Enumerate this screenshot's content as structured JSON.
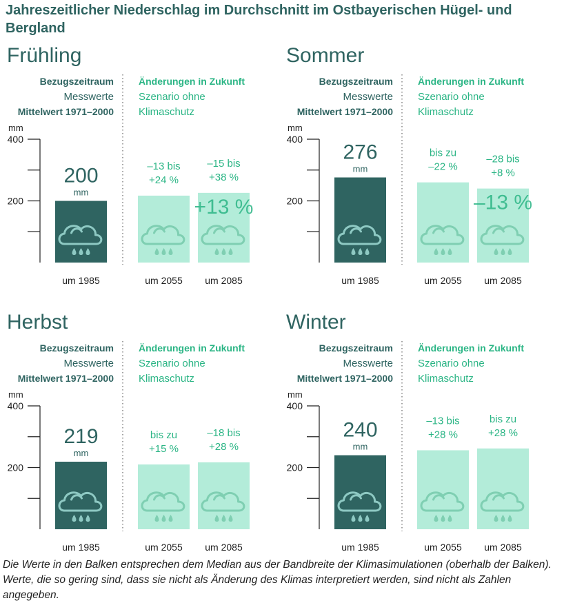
{
  "title": "Jahreszeitlicher Niederschlag im Durchschnitt im Ostbayerischen Hügel- und Bergland",
  "footnote": "Die Werte in den Balken entsprechen dem Median aus der Bandbreite der Klimasimulationen (oberhalb der Balken). Werte, die so gering sind, dass sie nicht als Änderung des Klimas interpretiert werden, sind nicht als Zahlen angegeben.",
  "colors": {
    "title": "#2f6461",
    "dark_bar": "#2f6461",
    "light_bar": "#b3ecd9",
    "accent_text": "#2bb585",
    "cloud_on_dark": "#8ec9c3",
    "cloud_on_light": "#7fcfb2",
    "axis": "#222222"
  },
  "chart_data": [
    {
      "type": "bar",
      "title": "Frühling",
      "unit": "mm",
      "ylabel": "mm",
      "yticks": [
        400,
        200
      ],
      "ylim": [
        0,
        400
      ],
      "reference_heading": [
        "Bezugszeitraum",
        "Messwerte",
        "Mittelwert 1971–2000"
      ],
      "future_heading": [
        "Änderungen in Zukunft",
        "Szenario ohne",
        "Klimaschutz"
      ],
      "categories": [
        "um 1985",
        "um 2055",
        "um 2085"
      ],
      "values": [
        200,
        217,
        226
      ],
      "value_label": "200",
      "value_unit": "mm",
      "range_labels": [
        "",
        "–13 bis\n+24 %",
        "–15 bis\n+38 %"
      ],
      "median_labels": [
        "",
        "",
        "+13 %"
      ]
    },
    {
      "type": "bar",
      "title": "Sommer",
      "unit": "mm",
      "ylabel": "mm",
      "yticks": [
        400,
        200
      ],
      "ylim": [
        0,
        400
      ],
      "reference_heading": [
        "Bezugszeitraum",
        "Messwerte",
        "Mittelwert 1971–2000"
      ],
      "future_heading": [
        "Änderungen in Zukunft",
        "Szenario ohne",
        "Klimaschutz"
      ],
      "categories": [
        "um 1985",
        "um 2055",
        "um 2085"
      ],
      "values": [
        276,
        260,
        240
      ],
      "value_label": "276",
      "value_unit": "mm",
      "range_labels": [
        "",
        "bis zu\n–22 %",
        "–28 bis\n+8 %"
      ],
      "median_labels": [
        "",
        "",
        "–13 %"
      ]
    },
    {
      "type": "bar",
      "title": "Herbst",
      "unit": "mm",
      "ylabel": "mm",
      "yticks": [
        400,
        200
      ],
      "ylim": [
        0,
        400
      ],
      "reference_heading": [
        "Bezugszeitraum",
        "Messwerte",
        "Mittelwert 1971–2000"
      ],
      "future_heading": [
        "Änderungen in Zukunft",
        "Szenario ohne",
        "Klimaschutz"
      ],
      "categories": [
        "um 1985",
        "um 2055",
        "um 2085"
      ],
      "values": [
        219,
        210,
        217
      ],
      "value_label": "219",
      "value_unit": "mm",
      "range_labels": [
        "",
        "bis zu\n+15 %",
        "–18 bis\n+28 %"
      ],
      "median_labels": [
        "",
        "",
        ""
      ]
    },
    {
      "type": "bar",
      "title": "Winter",
      "unit": "mm",
      "ylabel": "mm",
      "yticks": [
        400,
        200
      ],
      "ylim": [
        0,
        400
      ],
      "reference_heading": [
        "Bezugszeitraum",
        "Messwerte",
        "Mittelwert 1971–2000"
      ],
      "future_heading": [
        "Änderungen in Zukunft",
        "Szenario ohne",
        "Klimaschutz"
      ],
      "categories": [
        "um 1985",
        "um 2055",
        "um 2085"
      ],
      "values": [
        240,
        256,
        262
      ],
      "value_label": "240",
      "value_unit": "mm",
      "range_labels": [
        "",
        "–13 bis\n+28 %",
        "bis zu\n+28 %"
      ],
      "median_labels": [
        "",
        "",
        ""
      ]
    }
  ]
}
